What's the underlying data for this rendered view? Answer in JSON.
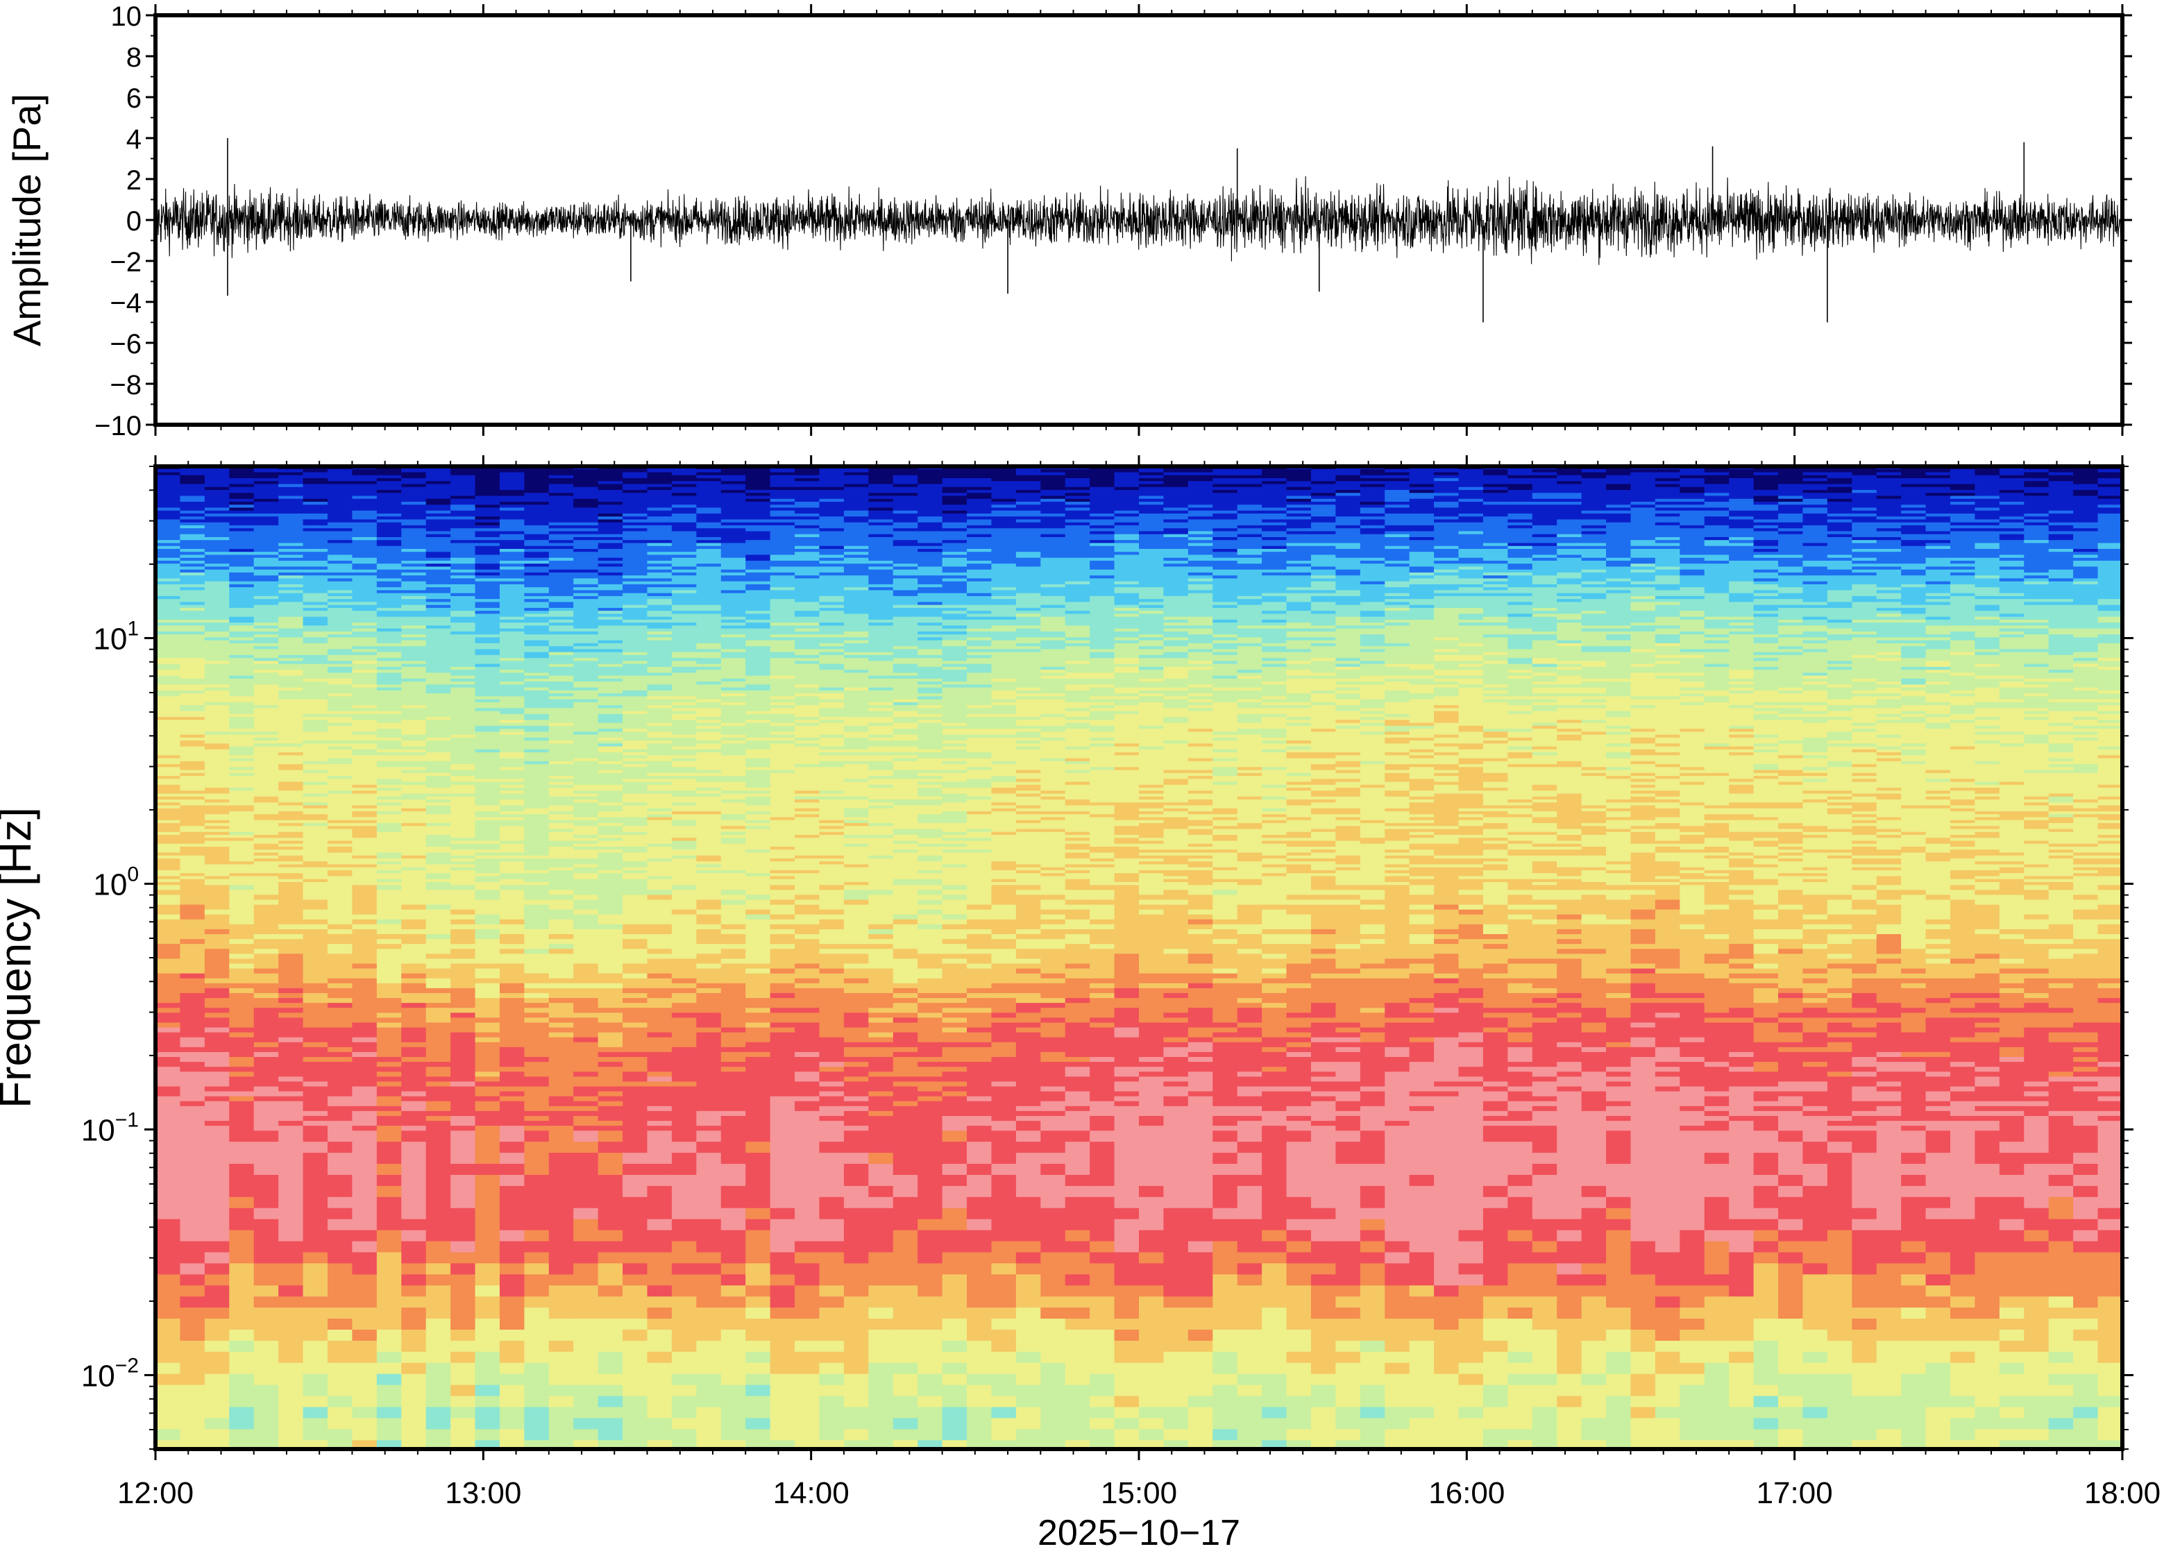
{
  "chart_data": [
    {
      "type": "line",
      "ylabel": "Amplitude [Pa]",
      "ylim": [
        -10,
        10
      ],
      "yticks": [
        "10",
        "8",
        "6",
        "4",
        "2",
        "0",
        "−2",
        "−4",
        "−6",
        "−8",
        "−10"
      ],
      "xlim": [
        "12:00",
        "18:00"
      ],
      "grid": false,
      "series_color": "#000000",
      "envelope": {
        "x_hours": [
          12.0,
          12.25,
          12.5,
          12.75,
          13.0,
          13.25,
          13.5,
          13.75,
          14.0,
          14.25,
          14.5,
          14.75,
          15.0,
          15.25,
          15.5,
          15.75,
          16.0,
          16.25,
          16.5,
          16.75,
          17.0,
          17.25,
          17.5,
          17.75,
          18.0
        ],
        "amplitude_pa": [
          1.2,
          1.3,
          1.0,
          0.9,
          0.7,
          0.8,
          0.9,
          1.0,
          1.1,
          1.0,
          1.0,
          1.1,
          1.2,
          1.2,
          1.3,
          1.2,
          1.6,
          1.5,
          1.4,
          1.4,
          1.3,
          1.1,
          1.0,
          1.1,
          1.0
        ]
      },
      "peaks": [
        {
          "x_hours": 12.22,
          "y": 4.0
        },
        {
          "x_hours": 12.22,
          "y": -3.7
        },
        {
          "x_hours": 13.45,
          "y": -3.0
        },
        {
          "x_hours": 14.6,
          "y": -3.6
        },
        {
          "x_hours": 15.3,
          "y": 3.5
        },
        {
          "x_hours": 15.55,
          "y": -3.5
        },
        {
          "x_hours": 16.05,
          "y": -5.0
        },
        {
          "x_hours": 16.75,
          "y": 3.6
        },
        {
          "x_hours": 17.1,
          "y": -5.0
        },
        {
          "x_hours": 17.7,
          "y": 3.8
        }
      ]
    },
    {
      "type": "heatmap",
      "ylabel": "Frequency [Hz]",
      "xlabel": "2025−10−17",
      "x_ticks": [
        "12:00",
        "13:00",
        "14:00",
        "15:00",
        "16:00",
        "17:00",
        "18:00"
      ],
      "xlim": [
        "12:00",
        "18:00"
      ],
      "y_scale": "log",
      "ylim_hz": [
        0.005,
        50
      ],
      "yticks_hz": [
        0.01,
        0.1,
        1,
        10
      ],
      "ytick_labels": [
        {
          "base": "10",
          "exp": "−2"
        },
        {
          "base": "10",
          "exp": "−1"
        },
        {
          "base": "10",
          "exp": "0"
        },
        {
          "base": "10",
          "exp": "1"
        }
      ],
      "colormap": [
        "#08046e",
        "#0a1ec8",
        "#1e6ef0",
        "#4cc8f0",
        "#8ce6d2",
        "#c8f0a0",
        "#eef08a",
        "#f5c864",
        "#f58c50",
        "#f0505a",
        "#f5969b"
      ],
      "time_columns": 80,
      "spectral_profile": {
        "freq_hz": [
          50,
          30,
          20,
          10,
          5,
          2,
          1,
          0.5,
          0.3,
          0.2,
          0.1,
          0.06,
          0.04,
          0.025,
          0.018,
          0.012,
          0.007,
          0.005
        ],
        "level_index": [
          0.3,
          1.5,
          2.5,
          4.5,
          5.6,
          6.2,
          6.2,
          6.9,
          8.3,
          9.0,
          9.7,
          9.8,
          9.3,
          8.2,
          7.3,
          6.2,
          5.3,
          5.5
        ]
      },
      "time_offset": {
        "x_hours": [
          12.0,
          12.5,
          13.0,
          13.25,
          13.5,
          14.0,
          14.5,
          14.6,
          15.0,
          15.5,
          16.0,
          16.5,
          17.0,
          17.5,
          18.0
        ],
        "offset": [
          0.2,
          0.0,
          -0.7,
          -0.8,
          -0.4,
          -0.2,
          -0.4,
          0.3,
          0.1,
          0.2,
          0.3,
          0.3,
          0.2,
          0.1,
          0.1
        ]
      }
    }
  ]
}
